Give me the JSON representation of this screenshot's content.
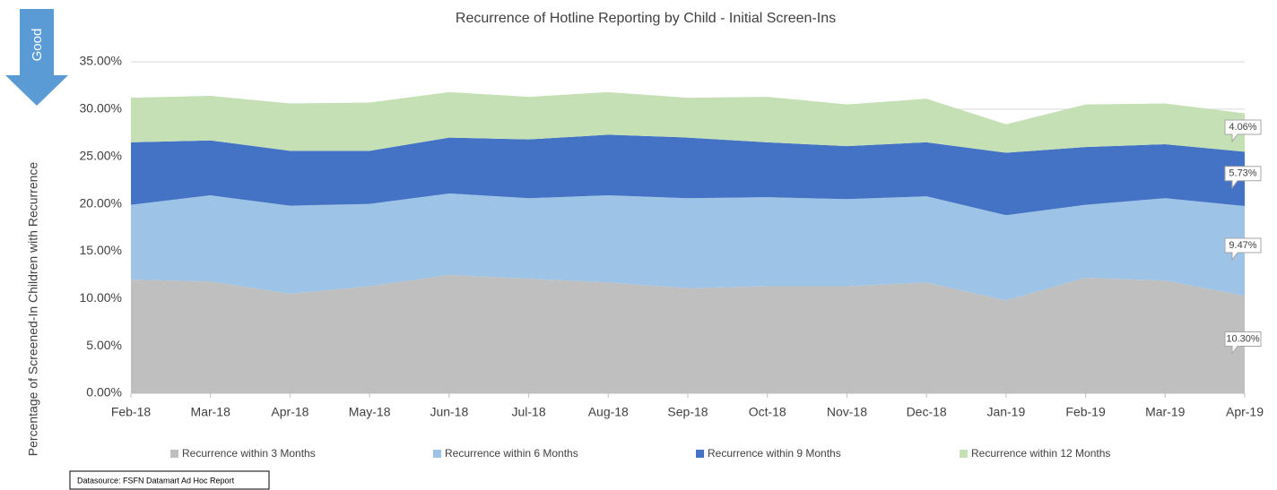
{
  "chart_data": {
    "type": "stacked_area",
    "title": "Recurrence of Hotline Reporting by Child - Initial Screen-Ins",
    "y_label": "Percentage of Screened-In Children with Recurrence",
    "annotation": "Good",
    "source": "Datasource: FSFN Datamart Ad Hoc Report",
    "categories": [
      "Feb-18",
      "Mar-18",
      "Apr-18",
      "May-18",
      "Jun-18",
      "Jul-18",
      "Aug-18",
      "Sep-18",
      "Oct-18",
      "Nov-18",
      "Dec-18",
      "Jan-19",
      "Feb-19",
      "Mar-19",
      "Apr-19"
    ],
    "series": [
      {
        "name": "Recurrence within 3 Months",
        "color": "#bfbfbf",
        "values": [
          12.0,
          11.8,
          10.5,
          11.3,
          12.5,
          12.1,
          11.7,
          11.1,
          11.3,
          11.3,
          11.7,
          9.8,
          12.2,
          11.9,
          10.3
        ],
        "value_labels": [
          null,
          null,
          null,
          null,
          null,
          null,
          null,
          null,
          null,
          null,
          null,
          null,
          null,
          null,
          "10.30%"
        ]
      },
      {
        "name": "Recurrence within 6 Months",
        "color": "#9dc3e6",
        "values": [
          7.9,
          9.1,
          9.3,
          8.7,
          8.6,
          8.5,
          9.2,
          9.5,
          9.4,
          9.2,
          9.1,
          9.0,
          7.7,
          8.7,
          9.47
        ],
        "value_labels": [
          null,
          null,
          null,
          null,
          null,
          null,
          null,
          null,
          null,
          null,
          null,
          null,
          null,
          null,
          "9.47%"
        ]
      },
      {
        "name": "Recurrence within 9 Months",
        "color": "#4472c4",
        "values": [
          6.6,
          5.8,
          5.8,
          5.6,
          5.9,
          6.2,
          6.4,
          6.4,
          5.8,
          5.6,
          5.7,
          6.6,
          6.1,
          5.7,
          5.73
        ],
        "value_labels": [
          null,
          null,
          null,
          null,
          null,
          null,
          null,
          null,
          null,
          null,
          null,
          null,
          null,
          null,
          "5.73%"
        ]
      },
      {
        "name": "Recurrence within 12 Months",
        "color": "#c5e0b4",
        "values": [
          4.7,
          4.7,
          5.0,
          5.1,
          4.8,
          4.5,
          4.5,
          4.2,
          4.8,
          4.4,
          4.6,
          3.0,
          4.5,
          4.3,
          4.06
        ],
        "value_labels": [
          null,
          null,
          null,
          null,
          null,
          null,
          null,
          null,
          null,
          null,
          null,
          null,
          null,
          null,
          "4.06%"
        ]
      }
    ],
    "ylim": [
      0,
      35
    ],
    "yticks": [
      {
        "value": 0,
        "label": "0.00%"
      },
      {
        "value": 5,
        "label": "5.00%"
      },
      {
        "value": 10,
        "label": "10.00%"
      },
      {
        "value": 15,
        "label": "15.00%"
      },
      {
        "value": 20,
        "label": "20.00%"
      },
      {
        "value": 25,
        "label": "25.00%"
      },
      {
        "value": 30,
        "label": "30.00%"
      },
      {
        "value": 35,
        "label": "35.00%"
      }
    ],
    "grid": true,
    "legend": "bottom"
  }
}
